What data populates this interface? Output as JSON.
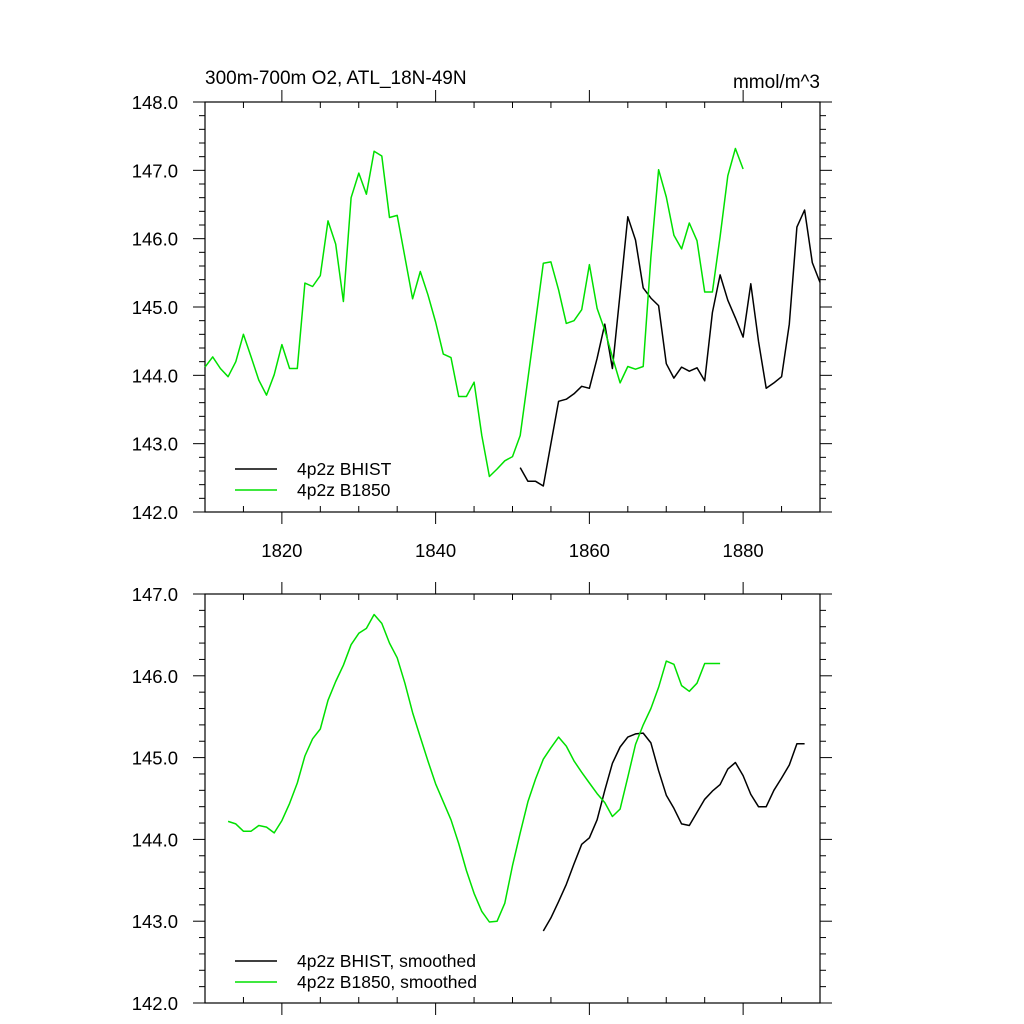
{
  "title_left": "300m-700m O2, ATL_18N-49N",
  "title_right": "mmol/m^3",
  "colors": {
    "bhist": "#000000",
    "b1850": "#00e000"
  },
  "chart_data": [
    {
      "type": "line",
      "xlim": [
        1810,
        1890
      ],
      "ylim": [
        142,
        148
      ],
      "x_ticks": [
        1820,
        1840,
        1860,
        1880
      ],
      "x_tick_labels": [
        "1820",
        "1840",
        "1860",
        "1880"
      ],
      "y_ticks": [
        142,
        143,
        144,
        145,
        146,
        147,
        148
      ],
      "y_tick_labels": [
        "142.0",
        "143.0",
        "144.0",
        "145.0",
        "146.0",
        "147.0",
        "148.0"
      ],
      "grid": false,
      "legend_position": "bottom-left",
      "series": [
        {
          "name": "4p2z BHIST",
          "color": "#000000",
          "x": [
            1851,
            1852,
            1853,
            1854,
            1855,
            1856,
            1857,
            1858,
            1859,
            1860,
            1861,
            1862,
            1863,
            1864,
            1865,
            1866,
            1867,
            1868,
            1869,
            1870,
            1871,
            1872,
            1873,
            1874,
            1875,
            1876,
            1877,
            1878,
            1879,
            1880,
            1881,
            1882,
            1883,
            1884,
            1885,
            1886,
            1887,
            1888,
            1889,
            1890
          ],
          "y": [
            142.65,
            142.45,
            142.45,
            142.38,
            143.0,
            143.62,
            143.65,
            143.73,
            143.84,
            143.81,
            144.25,
            144.75,
            144.1,
            145.2,
            146.32,
            145.98,
            145.28,
            145.13,
            145.02,
            144.17,
            143.96,
            144.12,
            144.06,
            144.11,
            143.92,
            144.92,
            145.47,
            145.1,
            144.84,
            144.56,
            145.34,
            144.5,
            143.81,
            143.89,
            143.98,
            144.75,
            146.17,
            146.42,
            145.65,
            145.36
          ]
        },
        {
          "name": "4p2z B1850",
          "color": "#00e000",
          "x": [
            1810,
            1811,
            1812,
            1813,
            1814,
            1815,
            1816,
            1817,
            1818,
            1819,
            1820,
            1821,
            1822,
            1823,
            1824,
            1825,
            1826,
            1827,
            1828,
            1829,
            1830,
            1831,
            1832,
            1833,
            1834,
            1835,
            1836,
            1837,
            1838,
            1839,
            1840,
            1841,
            1842,
            1843,
            1844,
            1845,
            1846,
            1847,
            1848,
            1849,
            1850,
            1851,
            1852,
            1853,
            1854,
            1855,
            1856,
            1857,
            1858,
            1859,
            1860,
            1861,
            1862,
            1863,
            1864,
            1865,
            1866,
            1867,
            1868,
            1869,
            1870,
            1871,
            1872,
            1873,
            1874,
            1875,
            1876,
            1877,
            1878,
            1879,
            1880
          ],
          "y": [
            144.12,
            144.27,
            144.1,
            143.98,
            144.2,
            144.6,
            144.27,
            143.93,
            143.71,
            144.01,
            144.45,
            144.1,
            144.1,
            145.35,
            145.3,
            145.46,
            146.26,
            145.92,
            145.08,
            146.6,
            146.96,
            146.65,
            147.28,
            147.21,
            146.31,
            146.34,
            145.73,
            145.12,
            145.52,
            145.18,
            144.78,
            144.31,
            144.26,
            143.69,
            143.69,
            143.9,
            143.12,
            142.52,
            142.63,
            142.75,
            142.81,
            143.12,
            143.95,
            144.79,
            145.64,
            145.66,
            145.25,
            144.76,
            144.8,
            144.96,
            145.62,
            144.98,
            144.66,
            144.27,
            143.89,
            144.13,
            144.09,
            144.13,
            145.73,
            147.01,
            146.61,
            146.05,
            145.85,
            146.23,
            145.97,
            145.22,
            145.22,
            146.03,
            146.92,
            147.32,
            147.02
          ]
        }
      ]
    },
    {
      "type": "line",
      "xlim": [
        1810,
        1890
      ],
      "ylim": [
        142,
        147
      ],
      "x_ticks": [
        1820,
        1840,
        1860,
        1880
      ],
      "y_ticks": [
        142,
        143,
        144,
        145,
        146,
        147
      ],
      "y_tick_labels": [
        "142.0",
        "143.0",
        "144.0",
        "145.0",
        "146.0",
        "147.0"
      ],
      "grid": false,
      "legend_position": "bottom-left",
      "series": [
        {
          "name": "4p2z BHIST, smoothed",
          "color": "#000000",
          "x": [
            1854,
            1855,
            1856,
            1857,
            1858,
            1859,
            1860,
            1861,
            1862,
            1863,
            1864,
            1865,
            1866,
            1867,
            1868,
            1869,
            1870,
            1871,
            1872,
            1873,
            1874,
            1875,
            1876,
            1877,
            1878,
            1879,
            1880,
            1881,
            1882,
            1883,
            1884,
            1885,
            1886,
            1887,
            1888
          ],
          "y": [
            142.88,
            143.04,
            143.24,
            143.45,
            143.7,
            143.94,
            144.02,
            144.24,
            144.6,
            144.93,
            145.13,
            145.25,
            145.29,
            145.3,
            145.18,
            144.84,
            144.54,
            144.38,
            144.19,
            144.17,
            144.33,
            144.49,
            144.59,
            144.67,
            144.86,
            144.94,
            144.78,
            144.55,
            144.4,
            144.4,
            144.6,
            144.75,
            144.91,
            145.17,
            145.17
          ]
        },
        {
          "name": "4p2z B1850, smoothed",
          "color": "#00e000",
          "x": [
            1813,
            1814,
            1815,
            1816,
            1817,
            1818,
            1819,
            1820,
            1821,
            1822,
            1823,
            1824,
            1825,
            1826,
            1827,
            1828,
            1829,
            1830,
            1831,
            1832,
            1833,
            1834,
            1835,
            1836,
            1837,
            1838,
            1839,
            1840,
            1841,
            1842,
            1843,
            1844,
            1845,
            1846,
            1847,
            1848,
            1849,
            1850,
            1851,
            1852,
            1853,
            1854,
            1855,
            1856,
            1857,
            1858,
            1859,
            1860,
            1861,
            1862,
            1863,
            1864,
            1865,
            1866,
            1867,
            1868,
            1869,
            1870,
            1871,
            1872,
            1873,
            1874,
            1875,
            1876,
            1877
          ],
          "y": [
            144.22,
            144.19,
            144.1,
            144.1,
            144.17,
            144.15,
            144.08,
            144.23,
            144.44,
            144.69,
            145.02,
            145.23,
            145.35,
            145.7,
            145.93,
            146.13,
            146.38,
            146.52,
            146.58,
            146.75,
            146.64,
            146.4,
            146.22,
            145.91,
            145.55,
            145.25,
            144.96,
            144.68,
            144.46,
            144.24,
            143.95,
            143.62,
            143.34,
            143.12,
            142.99,
            143.0,
            143.22,
            143.68,
            144.08,
            144.46,
            144.74,
            144.98,
            145.12,
            145.25,
            145.14,
            144.96,
            144.82,
            144.69,
            144.56,
            144.45,
            144.28,
            144.37,
            144.76,
            145.16,
            145.4,
            145.6,
            145.86,
            146.18,
            146.14,
            145.88,
            145.81,
            145.91,
            146.15,
            146.15,
            146.15
          ]
        }
      ]
    }
  ]
}
